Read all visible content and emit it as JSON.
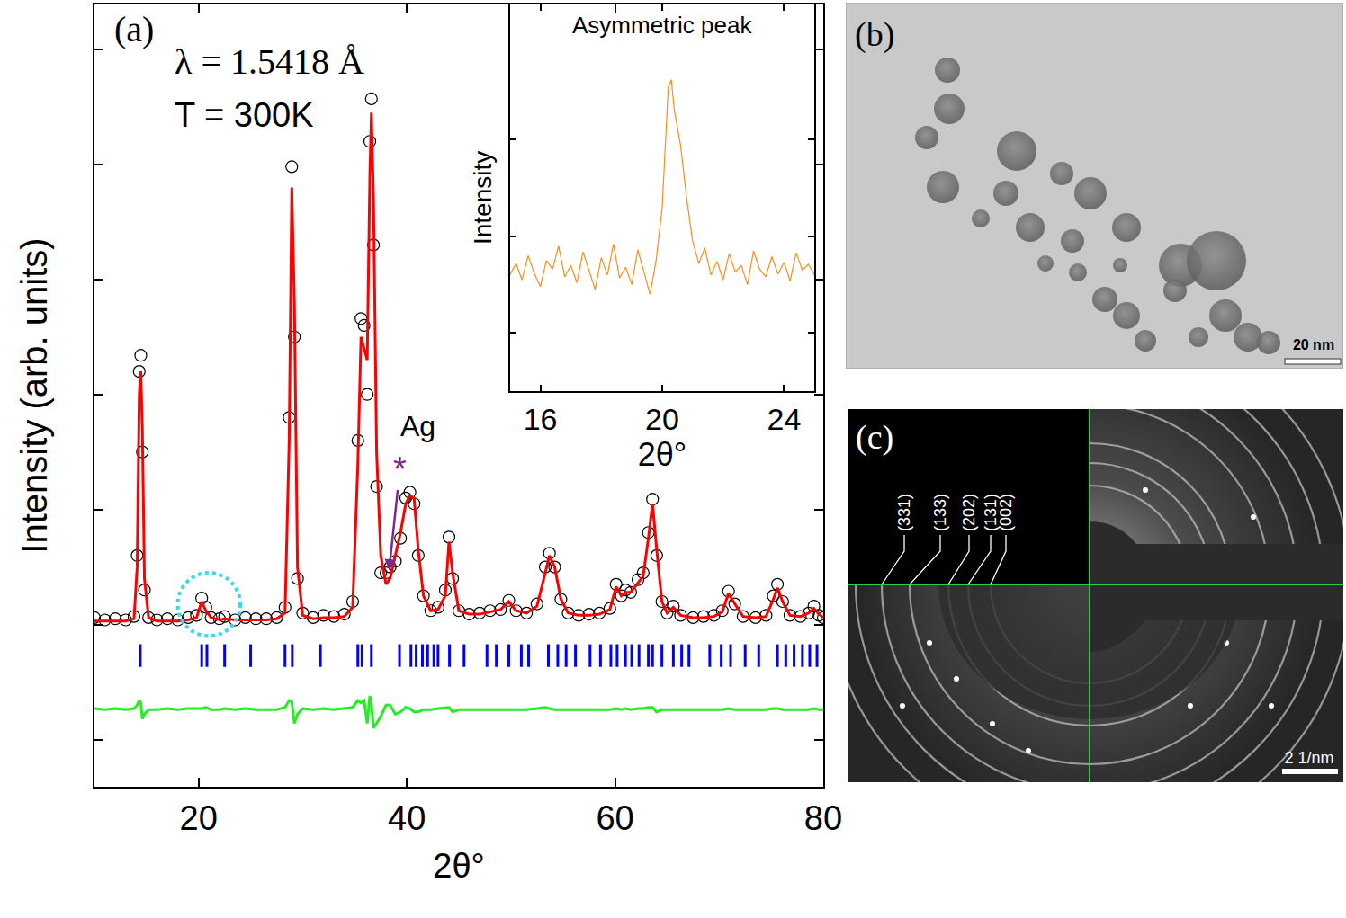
{
  "chart_data": [
    {
      "type": "scatter",
      "label": "(a)",
      "annotations": [
        "λ = 1.5418 Å",
        "T = 300K"
      ],
      "x_label": "2θ°",
      "y_label": "Intensity (arb. units)",
      "xlim": [
        10,
        80
      ],
      "xticks": [
        20,
        40,
        60,
        80
      ],
      "ylim": [
        -0.41,
        6.39
      ],
      "yticks": [
        0,
        1,
        2,
        3,
        4,
        5,
        6
      ],
      "tick_labels": "x",
      "grid": false,
      "pointer": {
        "text": "Ag",
        "symbol": "*",
        "x": 38.3,
        "y": 1.47,
        "color": "#7b2a8a"
      },
      "highlight": {
        "x": [
          18,
          24
        ],
        "y": [
          0.9,
          1.45
        ],
        "color": "#33dde6",
        "line_style": "dot"
      },
      "series": [
        {
          "type": "scatter",
          "marker": "open-circle",
          "color": "#000000",
          "x": [
            10.0,
            11.0,
            12.0,
            13.0,
            13.8,
            14.1,
            14.3,
            14.45,
            14.6,
            14.8,
            15.2,
            16.0,
            17.0,
            18.0,
            19.0,
            19.8,
            20.3,
            20.7,
            21.2,
            22.0,
            22.5,
            23.5,
            24.5,
            25.5,
            26.5,
            27.5,
            28.3,
            28.7,
            28.95,
            29.2,
            29.5,
            30.0,
            31.0,
            32.0,
            33.0,
            34.0,
            34.8,
            35.3,
            35.6,
            35.9,
            36.2,
            36.45,
            36.6,
            36.8,
            37.1,
            37.5,
            38.0,
            38.4,
            38.9,
            39.4,
            39.9,
            40.3,
            40.7,
            41.1,
            41.6,
            42.3,
            43.0,
            43.7,
            44.05,
            44.4,
            45.0,
            46.0,
            47.0,
            48.0,
            49.0,
            49.8,
            50.5,
            51.5,
            52.5,
            53.3,
            53.7,
            54.2,
            54.8,
            55.5,
            56.5,
            57.5,
            58.5,
            59.5,
            60.1,
            60.6,
            61.0,
            61.5,
            62.2,
            62.7,
            63.2,
            63.6,
            64.0,
            64.5,
            65.0,
            65.6,
            66.3,
            67.5,
            68.5,
            69.5,
            70.3,
            70.9,
            71.5,
            72.3,
            73.5,
            74.5,
            75.2,
            75.6,
            76.1,
            76.8,
            77.8,
            78.6,
            79.1,
            79.6,
            80.0
          ],
          "values": [
            1.06,
            1.04,
            1.05,
            1.04,
            1.07,
            1.6,
            3.2,
            3.34,
            2.5,
            1.3,
            1.06,
            1.04,
            1.05,
            1.04,
            1.06,
            1.08,
            1.23,
            1.15,
            1.06,
            1.05,
            1.07,
            1.04,
            1.06,
            1.05,
            1.05,
            1.06,
            1.15,
            2.8,
            4.98,
            3.5,
            1.4,
            1.1,
            1.06,
            1.08,
            1.07,
            1.09,
            1.2,
            2.6,
            3.66,
            3.6,
            3.0,
            5.2,
            5.57,
            4.3,
            2.2,
            1.45,
            1.45,
            1.5,
            1.55,
            1.75,
            2.1,
            2.15,
            2.05,
            1.6,
            1.25,
            1.12,
            1.15,
            1.3,
            1.76,
            1.4,
            1.12,
            1.09,
            1.1,
            1.12,
            1.13,
            1.21,
            1.12,
            1.1,
            1.18,
            1.5,
            1.62,
            1.5,
            1.22,
            1.1,
            1.08,
            1.09,
            1.1,
            1.14,
            1.35,
            1.25,
            1.3,
            1.28,
            1.39,
            1.45,
            1.8,
            2.09,
            1.6,
            1.2,
            1.1,
            1.16,
            1.08,
            1.06,
            1.07,
            1.08,
            1.12,
            1.29,
            1.18,
            1.07,
            1.06,
            1.08,
            1.25,
            1.35,
            1.2,
            1.08,
            1.07,
            1.1,
            1.16,
            1.08,
            1.06
          ]
        },
        {
          "type": "line",
          "line_style": "solid",
          "color": "#ff0000",
          "x": [
            10.0,
            11.0,
            12.0,
            13.0,
            13.8,
            14.1,
            14.3,
            14.45,
            14.6,
            14.8,
            15.2,
            16.0,
            17.0,
            18.0,
            19.0,
            19.8,
            20.3,
            20.7,
            21.2,
            22.0,
            22.5,
            23.5,
            24.5,
            25.5,
            26.5,
            27.5,
            28.3,
            28.7,
            28.95,
            29.2,
            29.5,
            30.0,
            31.0,
            32.0,
            33.0,
            34.0,
            34.8,
            35.3,
            35.6,
            35.9,
            36.2,
            36.45,
            36.6,
            36.8,
            37.1,
            37.5,
            38.0,
            38.4,
            38.9,
            39.4,
            39.9,
            40.3,
            40.7,
            41.1,
            41.6,
            42.3,
            43.0,
            43.7,
            44.05,
            44.4,
            45.0,
            46.0,
            47.0,
            48.0,
            49.0,
            49.8,
            50.5,
            51.5,
            52.5,
            53.3,
            53.7,
            54.2,
            54.8,
            55.5,
            56.5,
            57.5,
            58.5,
            59.5,
            60.1,
            60.6,
            61.0,
            61.5,
            62.2,
            62.7,
            63.2,
            63.6,
            64.0,
            64.5,
            65.0,
            65.6,
            66.3,
            67.5,
            68.5,
            69.5,
            70.3,
            70.9,
            71.5,
            72.3,
            73.5,
            74.5,
            75.2,
            75.6,
            76.1,
            76.8,
            77.8,
            78.6,
            79.1,
            79.6,
            80.0
          ],
          "values": [
            1.03,
            1.03,
            1.03,
            1.03,
            1.05,
            1.5,
            3.0,
            3.2,
            2.7,
            1.4,
            1.06,
            1.03,
            1.03,
            1.03,
            1.04,
            1.06,
            1.2,
            1.12,
            1.06,
            1.04,
            1.05,
            1.04,
            1.04,
            1.04,
            1.04,
            1.05,
            1.1,
            2.6,
            4.8,
            3.8,
            1.5,
            1.08,
            1.05,
            1.06,
            1.06,
            1.07,
            1.15,
            2.4,
            3.5,
            3.4,
            3.3,
            4.9,
            5.45,
            4.7,
            2.5,
            1.6,
            1.35,
            1.4,
            1.6,
            1.8,
            2.05,
            2.12,
            2.1,
            1.65,
            1.25,
            1.12,
            1.13,
            1.25,
            1.72,
            1.45,
            1.12,
            1.09,
            1.09,
            1.11,
            1.13,
            1.2,
            1.12,
            1.1,
            1.16,
            1.45,
            1.6,
            1.5,
            1.22,
            1.1,
            1.08,
            1.08,
            1.09,
            1.13,
            1.33,
            1.25,
            1.28,
            1.28,
            1.36,
            1.42,
            1.75,
            2.05,
            1.65,
            1.2,
            1.1,
            1.15,
            1.08,
            1.06,
            1.06,
            1.07,
            1.11,
            1.27,
            1.18,
            1.07,
            1.06,
            1.07,
            1.22,
            1.32,
            1.2,
            1.08,
            1.07,
            1.1,
            1.14,
            1.09,
            1.06
          ]
        },
        {
          "type": "scatter",
          "marker": "tick",
          "color": "#0000ff",
          "x": [
            14.4,
            20.3,
            20.8,
            22.5,
            25.0,
            28.3,
            29.0,
            31.7,
            35.3,
            35.7,
            36.6,
            39.3,
            40.4,
            40.9,
            41.5,
            42.0,
            42.6,
            43.0,
            44.1,
            45.5,
            47.7,
            48.6,
            49.8,
            51.0,
            51.7,
            53.6,
            54.5,
            55.3,
            56.2,
            57.6,
            58.6,
            59.6,
            60.2,
            61.0,
            61.6,
            62.3,
            63.2,
            63.6,
            64.5,
            65.6,
            66.4,
            67.1,
            69.1,
            70.2,
            71.1,
            72.5,
            73.8,
            75.6,
            76.4,
            77.2,
            78.0,
            78.7,
            79.4
          ],
          "values": [
            0.73,
            0.73,
            0.73,
            0.73,
            0.73,
            0.73,
            0.73,
            0.73,
            0.73,
            0.73,
            0.73,
            0.73,
            0.73,
            0.73,
            0.73,
            0.73,
            0.73,
            0.73,
            0.73,
            0.73,
            0.73,
            0.73,
            0.73,
            0.73,
            0.73,
            0.73,
            0.73,
            0.73,
            0.73,
            0.73,
            0.73,
            0.73,
            0.73,
            0.73,
            0.73,
            0.73,
            0.73,
            0.73,
            0.73,
            0.73,
            0.73,
            0.73,
            0.73,
            0.73,
            0.73,
            0.73,
            0.73,
            0.73,
            0.73,
            0.73,
            0.73,
            0.73,
            0.73
          ]
        },
        {
          "type": "line",
          "line_style": "solid",
          "color": "#22ee22",
          "x": [
            10.0,
            11.0,
            12.0,
            13.0,
            13.8,
            14.1,
            14.3,
            14.45,
            14.6,
            14.8,
            15.2,
            16.0,
            17.0,
            18.0,
            19.0,
            19.8,
            20.3,
            20.7,
            21.2,
            22.0,
            22.5,
            23.5,
            24.5,
            25.5,
            26.5,
            27.5,
            28.3,
            28.7,
            28.95,
            29.2,
            29.5,
            30.0,
            31.0,
            32.0,
            33.0,
            34.0,
            34.8,
            35.3,
            35.6,
            35.9,
            36.2,
            36.45,
            36.6,
            36.8,
            37.1,
            37.5,
            38.0,
            38.4,
            38.9,
            39.4,
            39.9,
            40.3,
            40.7,
            41.1,
            41.6,
            42.3,
            43.0,
            43.7,
            44.05,
            44.4,
            45.0,
            46.0,
            47.0,
            48.0,
            49.0,
            49.8,
            50.5,
            51.5,
            52.5,
            53.3,
            53.7,
            54.2,
            54.8,
            55.5,
            56.5,
            57.5,
            58.5,
            59.5,
            60.1,
            60.6,
            61.0,
            61.5,
            62.2,
            62.7,
            63.2,
            63.6,
            64.0,
            64.5,
            65.0,
            65.6,
            66.3,
            67.5,
            68.5,
            69.5,
            70.3,
            70.9,
            71.5,
            72.3,
            73.5,
            74.5,
            75.2,
            75.6,
            76.1,
            76.8,
            77.8,
            78.6,
            79.1,
            79.6,
            80.0
          ],
          "values": [
            0.27,
            0.26,
            0.27,
            0.26,
            0.27,
            0.3,
            0.34,
            0.32,
            0.18,
            0.22,
            0.26,
            0.26,
            0.27,
            0.26,
            0.27,
            0.27,
            0.27,
            0.28,
            0.26,
            0.26,
            0.27,
            0.26,
            0.27,
            0.26,
            0.26,
            0.26,
            0.28,
            0.34,
            0.33,
            0.14,
            0.22,
            0.27,
            0.26,
            0.27,
            0.26,
            0.27,
            0.28,
            0.34,
            0.32,
            0.34,
            0.14,
            0.38,
            0.31,
            0.1,
            0.14,
            0.2,
            0.3,
            0.3,
            0.22,
            0.24,
            0.28,
            0.27,
            0.24,
            0.24,
            0.26,
            0.26,
            0.27,
            0.28,
            0.28,
            0.24,
            0.26,
            0.26,
            0.26,
            0.26,
            0.26,
            0.26,
            0.26,
            0.26,
            0.27,
            0.28,
            0.27,
            0.26,
            0.26,
            0.26,
            0.26,
            0.26,
            0.26,
            0.26,
            0.27,
            0.26,
            0.27,
            0.26,
            0.27,
            0.27,
            0.28,
            0.28,
            0.24,
            0.26,
            0.26,
            0.26,
            0.26,
            0.26,
            0.26,
            0.26,
            0.26,
            0.27,
            0.26,
            0.26,
            0.26,
            0.26,
            0.27,
            0.27,
            0.26,
            0.26,
            0.26,
            0.26,
            0.27,
            0.26,
            0.26
          ]
        }
      ]
    },
    {
      "type": "line",
      "title": "Asymmetric peak",
      "x_label": "2θ°",
      "y_label": "Intensity",
      "xlim": [
        15,
        25
      ],
      "xticks": [
        16,
        20,
        24
      ],
      "ylim": [
        -0.6,
        3.4
      ],
      "yticks": [
        0,
        1,
        2
      ],
      "tick_labels": "x",
      "grid": false,
      "series": [
        {
          "type": "line",
          "line_style": "solid",
          "color": "#ff8c1a",
          "x": [
            15.0,
            15.2,
            15.4,
            15.6,
            15.8,
            16.0,
            16.2,
            16.4,
            16.6,
            16.8,
            17.0,
            17.2,
            17.4,
            17.6,
            17.8,
            18.0,
            18.2,
            18.4,
            18.6,
            18.8,
            19.0,
            19.2,
            19.4,
            19.6,
            19.8,
            20.0,
            20.2,
            20.3,
            20.4,
            20.6,
            20.8,
            21.0,
            21.2,
            21.4,
            21.6,
            21.8,
            22.0,
            22.2,
            22.4,
            22.6,
            22.8,
            23.0,
            23.2,
            23.4,
            23.6,
            23.8,
            24.0,
            24.2,
            24.4,
            24.6,
            24.8,
            25.0
          ],
          "values": [
            0.6,
            0.72,
            0.55,
            0.8,
            0.62,
            0.48,
            0.75,
            0.66,
            0.9,
            0.58,
            0.7,
            0.52,
            0.84,
            0.64,
            0.45,
            0.78,
            0.6,
            0.92,
            0.57,
            0.68,
            0.5,
            0.86,
            0.62,
            0.4,
            0.75,
            1.3,
            2.55,
            2.62,
            2.3,
            1.95,
            1.4,
            0.95,
            0.72,
            0.88,
            0.6,
            0.74,
            0.55,
            0.82,
            0.63,
            0.7,
            0.5,
            0.85,
            0.66,
            0.58,
            0.79,
            0.61,
            0.73,
            0.54,
            0.83,
            0.65,
            0.71,
            0.6
          ]
        }
      ]
    }
  ],
  "panels": [
    {
      "label": "(b)",
      "scale_bar": "20 nm"
    },
    {
      "label": "(c)",
      "rings": [
        "(331)",
        "(133)",
        "(202)",
        "(131)",
        "(002)"
      ],
      "scale_bar": "2 1/nm"
    }
  ]
}
